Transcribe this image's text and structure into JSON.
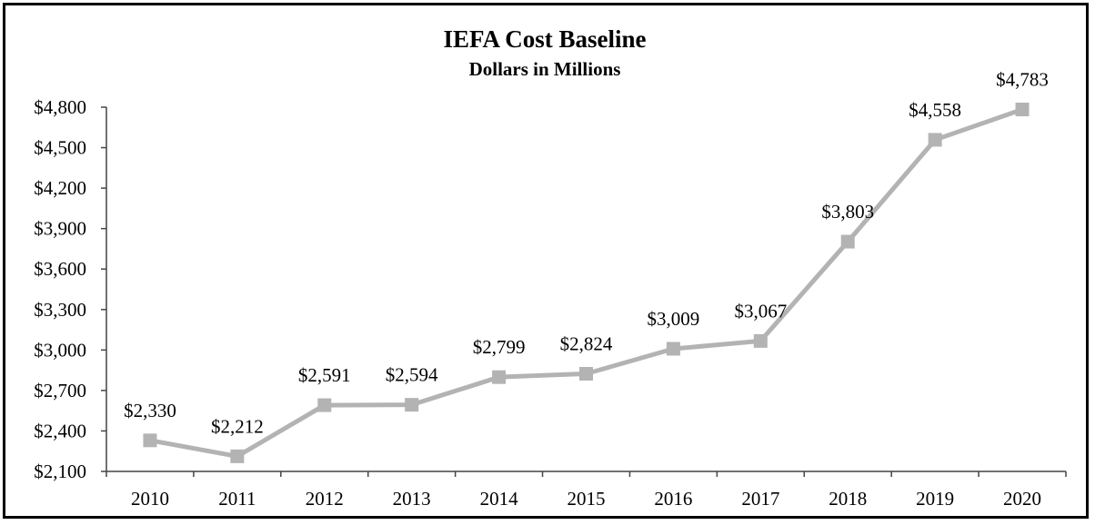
{
  "chart_data": {
    "type": "line",
    "title": "IEFA Cost Baseline",
    "subtitle": "Dollars in Millions",
    "x": [
      "2010",
      "2011",
      "2012",
      "2013",
      "2014",
      "2015",
      "2016",
      "2017",
      "2018",
      "2019",
      "2020"
    ],
    "values": [
      2330,
      2212,
      2591,
      2594,
      2799,
      2824,
      3009,
      3067,
      3803,
      4558,
      4783
    ],
    "data_labels": [
      "$2,330",
      "$2,212",
      "$2,591",
      "$2,594",
      "$2,799",
      "$2,824",
      "$3,009",
      "$3,067",
      "$3,803",
      "$4,558",
      "$4,783"
    ],
    "ylim": [
      2100,
      4800
    ],
    "yticks": [
      2100,
      2400,
      2700,
      3000,
      3300,
      3600,
      3900,
      4200,
      4500,
      4800
    ],
    "ytick_labels": [
      "$2,100",
      "$2,400",
      "$2,700",
      "$3,000",
      "$3,300",
      "$3,600",
      "$3,900",
      "$4,200",
      "$4,500",
      "$4,800"
    ],
    "xlabel": "",
    "ylabel": "",
    "grid": false,
    "legend": "none",
    "line_color": "#b3b3b3",
    "marker": "square"
  }
}
